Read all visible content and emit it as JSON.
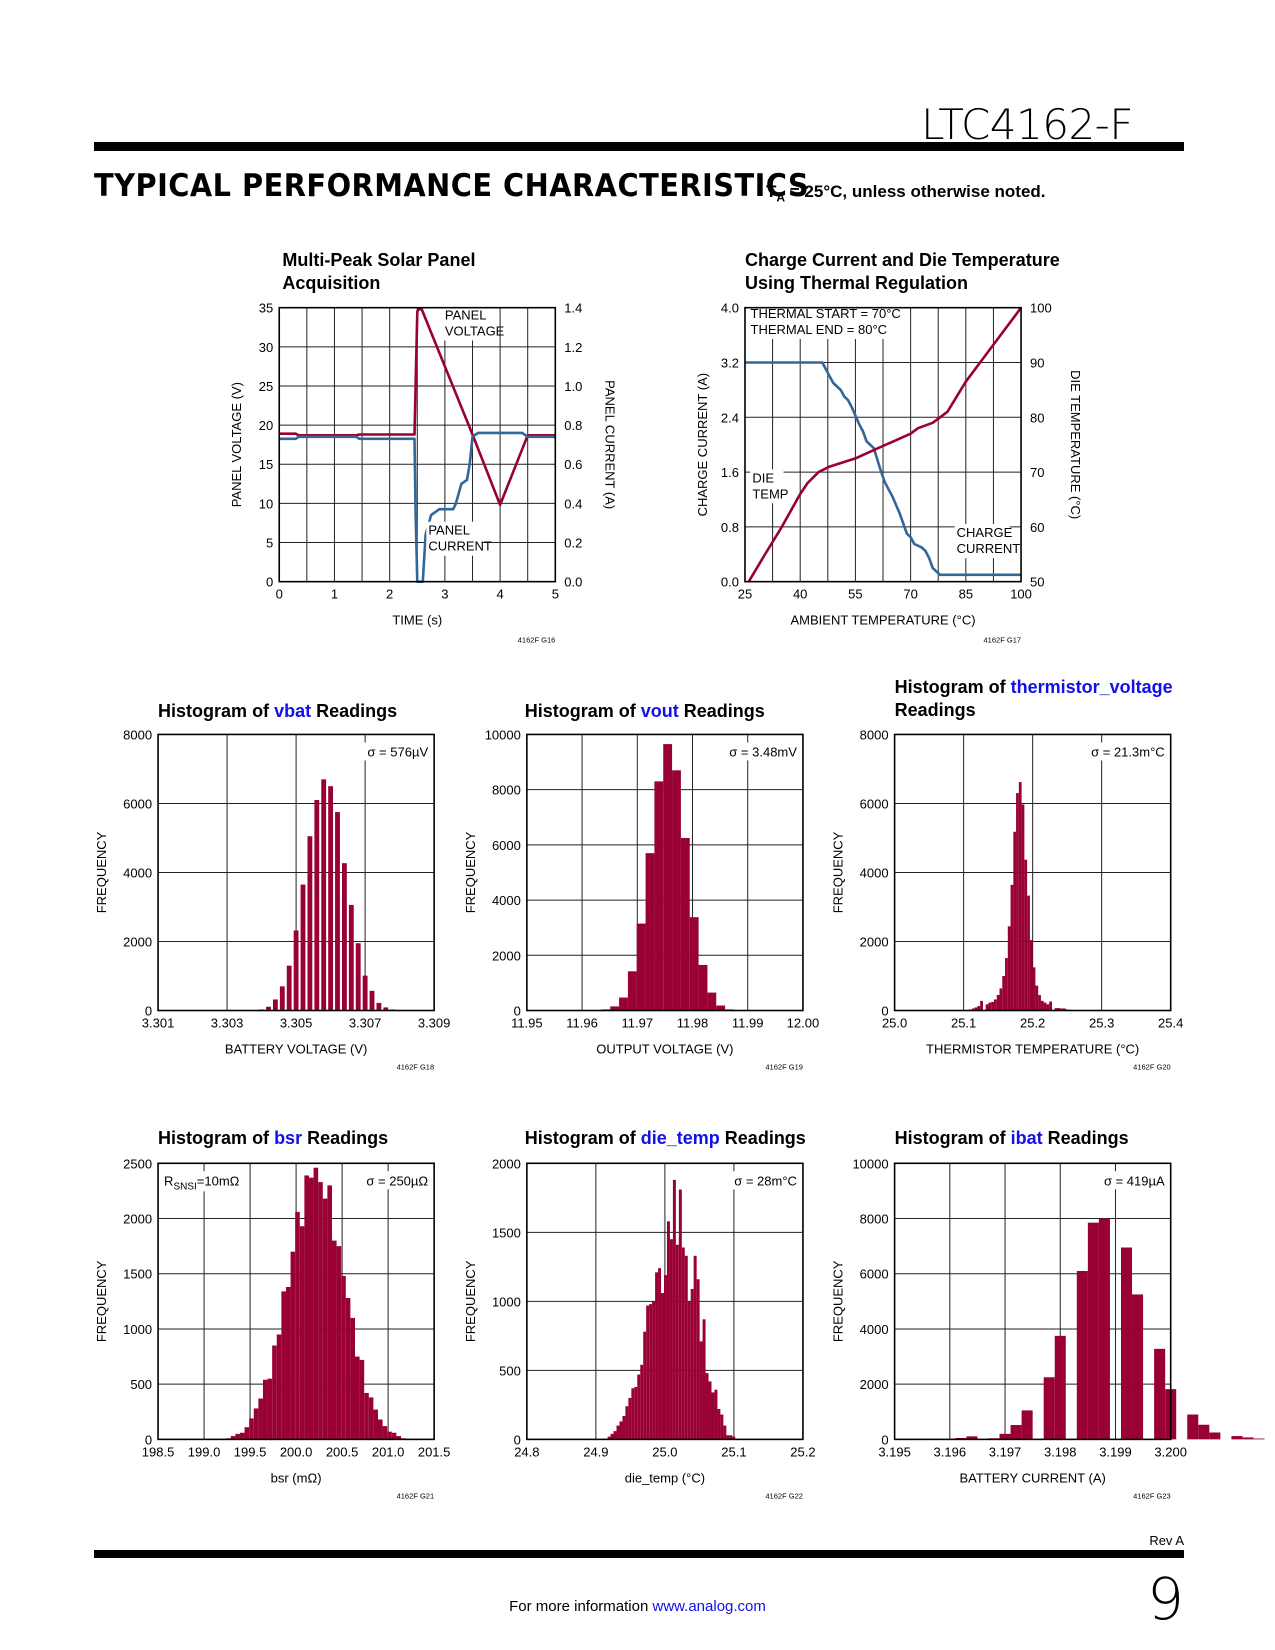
{
  "header": {
    "part_number": "LTC4162-F",
    "section_title": "TYPICAL PERFORMANCE CHARACTERISTICS",
    "note_prefix": "T",
    "note_sub": "A",
    "note_rest": " = 25°C, unless otherwise noted."
  },
  "colors": {
    "red": "#990033",
    "blue": "#336699",
    "link": "#1010e8",
    "grid": "#000000"
  },
  "footer": {
    "rev": "Rev A",
    "page": "9",
    "info_text": "For more information ",
    "link_text": "www.analog.com"
  },
  "chart_data": [
    {
      "id": "G16",
      "type": "line",
      "title_line1": "Multi-Peak Solar Panel",
      "title_line2": "Acquisition",
      "xlabel": "TIME (s)",
      "ylabel": "PANEL VOLTAGE (V)",
      "y2label": "PANEL CURRENT (A)",
      "xlim": [
        0,
        5
      ],
      "ylim": [
        0,
        35
      ],
      "y2lim": [
        0,
        1.4
      ],
      "xticks": [
        "0",
        "1",
        "2",
        "3",
        "4",
        "5"
      ],
      "yticks": [
        "0",
        "5",
        "10",
        "15",
        "20",
        "25",
        "30",
        "35"
      ],
      "y2ticks": [
        "0.0",
        "0.2",
        "0.4",
        "0.6",
        "0.8",
        "1.0",
        "1.2",
        "1.4"
      ],
      "grid": true,
      "fig_id": "4162F G16",
      "annotations": [
        {
          "lines": [
            "PANEL",
            "VOLTAGE"
          ],
          "x": 3.0,
          "y": 33.5
        },
        {
          "lines": [
            "PANEL",
            "CURRENT"
          ],
          "x": 2.7,
          "y": 6.0
        }
      ],
      "series": [
        {
          "name": "PANEL VOLTAGE",
          "axis": "left",
          "color": "red",
          "x": [
            0,
            0.3,
            0.35,
            1.4,
            1.45,
            2.45,
            2.5,
            2.52,
            2.58,
            3.5,
            4.0,
            4.5,
            5.0
          ],
          "y": [
            18.9,
            18.9,
            18.7,
            18.7,
            18.8,
            18.8,
            34.5,
            34.8,
            34.8,
            18.8,
            9.8,
            18.7,
            18.7
          ]
        },
        {
          "name": "PANEL CURRENT",
          "axis": "right",
          "color": "blue",
          "x": [
            0,
            0.3,
            0.35,
            1.4,
            1.45,
            2.45,
            2.47,
            2.5,
            2.55,
            2.6,
            2.65,
            2.75,
            2.9,
            3.15,
            3.2,
            3.3,
            3.4,
            3.45,
            3.5,
            3.6,
            4.4,
            4.5,
            5.0
          ],
          "y": [
            0.73,
            0.73,
            0.74,
            0.74,
            0.73,
            0.73,
            0.35,
            0.0,
            0.0,
            0.0,
            0.24,
            0.34,
            0.37,
            0.37,
            0.4,
            0.5,
            0.52,
            0.6,
            0.74,
            0.76,
            0.76,
            0.74,
            0.74
          ]
        }
      ]
    },
    {
      "id": "G17",
      "type": "line",
      "title_line1": "Charge Current and Die Temperature",
      "title_line2": "Using Thermal Regulation",
      "xlabel": "AMBIENT TEMPERATURE (°C)",
      "ylabel": "CHARGE CURRENT (A)",
      "y2label": "DIE TEMPERATURE (°C)",
      "xlim": [
        25,
        100
      ],
      "ylim": [
        0,
        4.0
      ],
      "y2lim": [
        50,
        100
      ],
      "xticks": [
        "25",
        "40",
        "55",
        "70",
        "85",
        "100"
      ],
      "yticks": [
        "0.0",
        "0.8",
        "1.6",
        "2.4",
        "3.2",
        "4.0"
      ],
      "y2ticks": [
        "50",
        "60",
        "70",
        "80",
        "90",
        "100"
      ],
      "grid": true,
      "fig_id": "4162F G17",
      "annotations": [
        {
          "lines": [
            "THERMAL START = 70°C",
            "THERMAL END = 80°C"
          ],
          "x": 26.5,
          "y": 3.85
        },
        {
          "lines": [
            "DIE",
            "TEMP"
          ],
          "x": 27,
          "y": 1.45
        },
        {
          "lines": [
            "CHARGE",
            "CURRENT"
          ],
          "x": 82.5,
          "y": 0.65
        }
      ],
      "series": [
        {
          "name": "CHARGE CURRENT",
          "axis": "left",
          "color": "blue",
          "x": [
            25,
            46,
            48,
            49,
            50,
            51,
            52,
            53,
            54,
            56,
            57,
            58,
            59,
            60,
            62,
            63,
            64,
            65,
            67,
            69,
            70,
            71,
            73,
            74,
            75,
            76,
            77,
            78,
            80,
            100
          ],
          "y": [
            3.2,
            3.2,
            3.0,
            2.9,
            2.85,
            2.8,
            2.7,
            2.65,
            2.55,
            2.3,
            2.2,
            2.05,
            2.0,
            1.95,
            1.6,
            1.45,
            1.35,
            1.25,
            1.0,
            0.7,
            0.65,
            0.55,
            0.5,
            0.45,
            0.35,
            0.2,
            0.15,
            0.1,
            0.1,
            0.1
          ]
        },
        {
          "name": "DIE TEMP",
          "axis": "right",
          "color": "red",
          "x": [
            26,
            30,
            35,
            40,
            42,
            45,
            48,
            55,
            60,
            65,
            70,
            72,
            76,
            80,
            85,
            90,
            100
          ],
          "y": [
            50,
            54.5,
            60,
            66,
            68,
            70,
            71,
            72.5,
            74,
            75.5,
            77,
            78,
            79,
            81,
            86.5,
            91,
            100
          ]
        }
      ]
    },
    {
      "id": "G18",
      "type": "bar",
      "title_prefix": "Histogram of ",
      "title_var": "vbat",
      "title_suffix": " Readings",
      "xlabel": "BATTERY VOLTAGE (V)",
      "ylabel": "FREQUENCY",
      "xlim": [
        3.301,
        3.309
      ],
      "ylim": [
        0,
        8000
      ],
      "xticks": [
        "3.301",
        "3.303",
        "3.305",
        "3.307",
        "3.309"
      ],
      "yticks": [
        "0",
        "2000",
        "4000",
        "6000",
        "8000"
      ],
      "sigma": "σ = 576µV",
      "fig_id": "4162F G18",
      "grid": true,
      "bar_fill": 0.7,
      "bin_start": 3.3039,
      "bin_width": 0.0002,
      "values": [
        30,
        110,
        320,
        700,
        1300,
        2320,
        3650,
        5050,
        6100,
        6700,
        6500,
        5750,
        4270,
        3060,
        1950,
        1010,
        570,
        220,
        90,
        30
      ]
    },
    {
      "id": "G19",
      "type": "bar",
      "title_prefix": "Histogram of ",
      "title_var": "vout",
      "title_suffix": " Readings",
      "xlabel": "OUTPUT VOLTAGE (V)",
      "ylabel": "FREQUENCY",
      "xlim": [
        11.95,
        12.0
      ],
      "ylim": [
        0,
        10000
      ],
      "xticks": [
        "11.95",
        "11.96",
        "11.97",
        "11.98",
        "11.99",
        "12.00"
      ],
      "yticks": [
        "0",
        "2000",
        "4000",
        "6000",
        "8000",
        "10000"
      ],
      "sigma": "σ = 3.48mV",
      "fig_id": "4162F G19",
      "grid": true,
      "bar_fill": 1.0,
      "bin_start": 11.9635,
      "bin_width": 0.0016,
      "values": [
        40,
        150,
        470,
        1420,
        3150,
        5700,
        8300,
        9650,
        8700,
        6250,
        3380,
        1650,
        650,
        180,
        40
      ]
    },
    {
      "id": "G20",
      "type": "bar",
      "title_prefix": "Histogram of ",
      "title_var": "thermistor_voltage",
      "title_suffix": "",
      "title_line2": "Readings",
      "xlabel": "THERMISTOR TEMPERATURE (°C)",
      "ylabel": "FREQUENCY",
      "xlim": [
        25.0,
        25.4
      ],
      "ylim": [
        0,
        8000
      ],
      "xticks": [
        "25.0",
        "25.1",
        "25.2",
        "25.3",
        "25.4"
      ],
      "yticks": [
        "0",
        "2000",
        "4000",
        "6000",
        "8000"
      ],
      "sigma": "σ = 21.3m°C",
      "fig_id": "4162F G20",
      "grid": true,
      "bar_fill": 1.0,
      "bin_start": 25.108,
      "bin_width": 0.004,
      "values": [
        30,
        60,
        90,
        130,
        280,
        0,
        180,
        230,
        250,
        320,
        450,
        640,
        1000,
        1520,
        2440,
        3640,
        5180,
        6300,
        6620,
        5970,
        4370,
        3330,
        2040,
        1250,
        720,
        450,
        280,
        230,
        180,
        260,
        20,
        70,
        70,
        60,
        60,
        30,
        20
      ]
    },
    {
      "id": "G21",
      "type": "bar",
      "title_prefix": "Histogram of ",
      "title_var": "bsr",
      "title_suffix": " Readings",
      "xlabel": "bsr (mΩ)",
      "ylabel": "FREQUENCY",
      "xlim": [
        198.5,
        201.5
      ],
      "ylim": [
        0,
        2500
      ],
      "xticks": [
        "198.5",
        "199.0",
        "199.5",
        "200.0",
        "200.5",
        "201.0",
        "201.5"
      ],
      "yticks": [
        "0",
        "500",
        "1000",
        "1500",
        "2000",
        "2500"
      ],
      "sigma": "σ = 250µΩ",
      "note": "R",
      "note_sub": "SNSI",
      "note_rest": "=10mΩ",
      "fig_id": "4162F G21",
      "grid": true,
      "bar_fill": 1.0,
      "bin_start": 199.24,
      "bin_width": 0.05,
      "values": [
        10,
        30,
        50,
        60,
        110,
        190,
        280,
        370,
        540,
        550,
        850,
        950,
        1340,
        1380,
        1700,
        2060,
        1930,
        2390,
        2370,
        2460,
        2330,
        2180,
        2300,
        1800,
        1750,
        1480,
        1280,
        1100,
        750,
        720,
        420,
        380,
        270,
        180,
        120,
        70,
        60,
        30,
        10,
        5
      ]
    },
    {
      "id": "G22",
      "type": "bar",
      "title_prefix": "Histogram of ",
      "title_var": "die_temp",
      "title_suffix": " Readings",
      "xlabel": "die_temp (°C)",
      "ylabel": "FREQUENCY",
      "xlim": [
        24.8,
        25.2
      ],
      "ylim": [
        0,
        2000
      ],
      "xticks": [
        "24.8",
        "24.9",
        "25.0",
        "25.1",
        "25.2"
      ],
      "yticks": [
        "0",
        "500",
        "1000",
        "1500",
        "2000"
      ],
      "sigma": "σ = 28m°C",
      "fig_id": "4162F G22",
      "grid": true,
      "bar_fill": 1.0,
      "bin_start": 24.917,
      "bin_width": 0.0043,
      "values": [
        20,
        40,
        60,
        100,
        130,
        170,
        240,
        300,
        370,
        380,
        470,
        540,
        780,
        970,
        980,
        1000,
        1210,
        1240,
        1060,
        1190,
        1580,
        1450,
        1880,
        1410,
        1810,
        1390,
        1330,
        1000,
        1090,
        1330,
        1160,
        710,
        870,
        480,
        420,
        340,
        360,
        220,
        180,
        100,
        30,
        30,
        20
      ]
    },
    {
      "id": "G23",
      "type": "bar",
      "title_prefix": "Histogram of ",
      "title_var": "ibat",
      "title_suffix": " Readings",
      "xlabel": "BATTERY CURRENT (A)",
      "ylabel": "FREQUENCY",
      "xlim": [
        3.195,
        3.2
      ],
      "ylim": [
        0,
        10000
      ],
      "xticks": [
        "3.195",
        "3.196",
        "3.197",
        "3.198",
        "3.199",
        "3.200"
      ],
      "yticks": [
        "0",
        "2000",
        "4000",
        "6000",
        "8000",
        "10000"
      ],
      "sigma": "σ = 419µA",
      "fig_id": "4162F G23",
      "grid": true,
      "bar_fill": 1.0,
      "bin_start": 3.1959,
      "bin_width": 0.0002,
      "values": [
        0,
        50,
        110,
        0,
        40,
        200,
        520,
        1050,
        0,
        2250,
        3750,
        0,
        6100,
        7850,
        8000,
        0,
        6950,
        5250,
        0,
        3280,
        1820,
        0,
        900,
        530,
        250,
        0,
        120,
        70,
        30
      ]
    }
  ]
}
